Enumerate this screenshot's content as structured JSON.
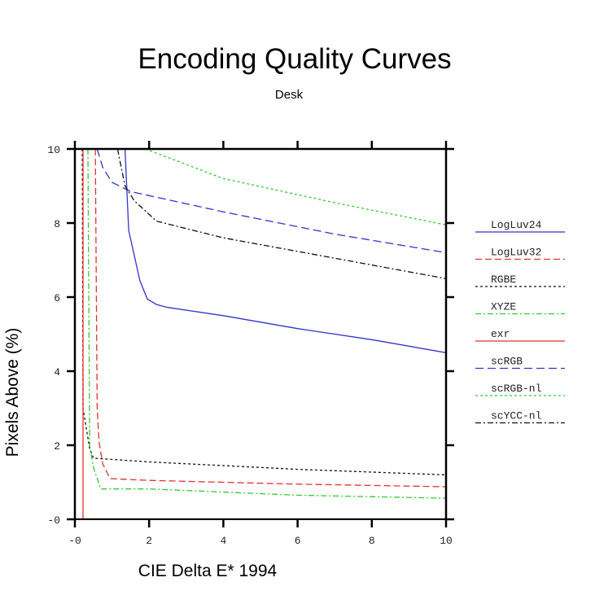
{
  "chart_data": {
    "type": "line",
    "title": "Encoding Quality Curves",
    "subtitle": "Desk",
    "xlabel": "CIE Delta E* 1994",
    "ylabel": "Pixels Above (%)",
    "xlim": [
      0,
      10
    ],
    "ylim": [
      0,
      10
    ],
    "xticks": [
      0,
      2,
      4,
      6,
      8,
      10
    ],
    "yticks": [
      0,
      2,
      4,
      6,
      8,
      10
    ],
    "xtick_labels": [
      "-0",
      "2",
      "4",
      "6",
      "8",
      "10"
    ],
    "ytick_labels": [
      "-0",
      "2",
      "4",
      "6",
      "8",
      "10"
    ],
    "grid": false,
    "legend_position": "right",
    "series": [
      {
        "name": "LogLuv24",
        "color": "#3333cc",
        "dash": "solid",
        "x": [
          1.35,
          1.45,
          1.75,
          1.95,
          2.2,
          2.5,
          4,
          6,
          8,
          10
        ],
        "y": [
          10,
          7.8,
          6.45,
          5.95,
          5.8,
          5.72,
          5.5,
          5.15,
          4.85,
          4.5
        ]
      },
      {
        "name": "LogLuv32",
        "color": "#dd3333",
        "dash": "dashed",
        "x": [
          0.55,
          0.6,
          0.65,
          0.75,
          0.95,
          2,
          6,
          10
        ],
        "y": [
          10,
          3,
          2.1,
          1.5,
          1.1,
          1.05,
          0.95,
          0.88
        ]
      },
      {
        "name": "RGBE",
        "color": "#111111",
        "dash": "dotted",
        "x": [
          0.2,
          0.22,
          0.4,
          0.5,
          2,
          6,
          10
        ],
        "y": [
          10,
          3,
          1.9,
          1.65,
          1.55,
          1.35,
          1.2
        ]
      },
      {
        "name": "XYZE",
        "color": "#33cc33",
        "dash": "dashdot",
        "x": [
          0.35,
          0.4,
          0.5,
          0.7,
          2,
          6,
          10
        ],
        "y": [
          10,
          2,
          1.4,
          0.82,
          0.82,
          0.65,
          0.57
        ]
      },
      {
        "name": "exr",
        "color": "#dd3333",
        "dash": "solid",
        "x": [
          0.22,
          0.22,
          10
        ],
        "y": [
          10,
          0,
          0
        ]
      },
      {
        "name": "scRGB",
        "color": "#3333cc",
        "dash": "longdash",
        "x": [
          0.6,
          0.75,
          1.0,
          1.5,
          4,
          7,
          10
        ],
        "y": [
          10,
          9.5,
          9.1,
          8.85,
          8.3,
          7.7,
          7.2
        ]
      },
      {
        "name": "scRGB-nl",
        "color": "#33cc33",
        "dash": "dotted",
        "x": [
          1.9,
          4,
          7,
          10
        ],
        "y": [
          10,
          9.2,
          8.55,
          7.95
        ]
      },
      {
        "name": "scYCC-nl",
        "color": "#111111",
        "dash": "dashdot",
        "x": [
          1.15,
          1.35,
          1.6,
          2.2,
          4,
          7,
          10
        ],
        "y": [
          10,
          9.0,
          8.6,
          8.05,
          7.6,
          7.05,
          6.5
        ]
      }
    ]
  }
}
